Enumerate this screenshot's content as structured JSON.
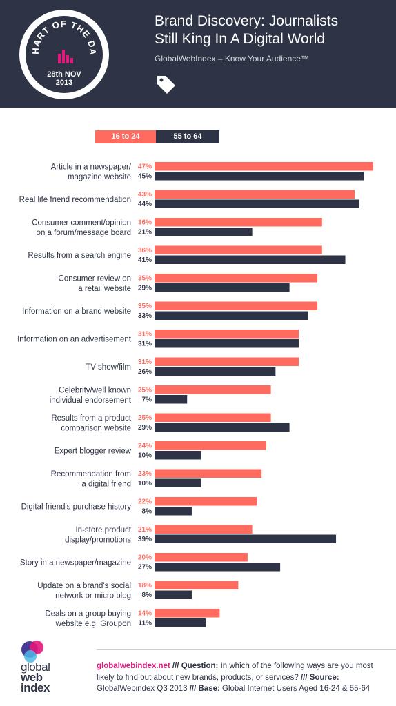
{
  "header": {
    "badge_line1": "28th NOV",
    "badge_line2": "2013",
    "badge_arc_text": "CHART OF THE DAY",
    "title_line1": "Brand Discovery: Journalists",
    "title_line2": "Still King In A Digital World",
    "subtitle": "GlobalWebIndex – Know Your Audience™",
    "tag_icon": "tag-icon"
  },
  "colors": {
    "header_bg": "#2e3445",
    "series_16_24": "#ff6b5e",
    "series_55_64": "#2e3445",
    "accent_pink": "#e4177c"
  },
  "chart_data": {
    "type": "bar",
    "orientation": "horizontal",
    "categories": [
      [
        "Article in a newspaper/",
        "magazine website"
      ],
      [
        "Real life friend recommendation"
      ],
      [
        "Consumer comment/opinion",
        "on a forum/message board"
      ],
      [
        "Results from a search engine"
      ],
      [
        "Consumer review on",
        "a retail website"
      ],
      [
        "Information on a brand website"
      ],
      [
        "Information on an advertisement"
      ],
      [
        "TV show/film"
      ],
      [
        "Celebrity/well known",
        "individual endorsement"
      ],
      [
        "Results from a product",
        "comparison website"
      ],
      [
        "Expert blogger review"
      ],
      [
        "Recommendation from",
        "a digital friend"
      ],
      [
        "Digital friend's purchase history"
      ],
      [
        "In-store product",
        "display/promotions"
      ],
      [
        "Story in a newspaper/magazine"
      ],
      [
        "Update on a brand's social",
        "network or micro blog"
      ],
      [
        "Deals on a group buying",
        "website e.g. Groupon"
      ]
    ],
    "series": [
      {
        "name": "16 to 24",
        "values": [
          47,
          43,
          36,
          36,
          35,
          35,
          31,
          31,
          25,
          25,
          24,
          23,
          22,
          21,
          20,
          18,
          14
        ]
      },
      {
        "name": "55 to 64",
        "values": [
          45,
          44,
          21,
          41,
          29,
          33,
          31,
          26,
          7,
          29,
          10,
          10,
          8,
          39,
          27,
          8,
          11
        ]
      }
    ],
    "value_suffix": "%",
    "legend_position": "top-left",
    "grid": false,
    "xlim": [
      0,
      47
    ]
  },
  "footer": {
    "site": "globalwebindex.net",
    "sep": "///",
    "question_label": "Question:",
    "question": "In which of the following ways are you most likely to find out about new brands, products, or services?",
    "source_label": "Source:",
    "source": "GlobalWebindex Q3 2013",
    "base_label": "Base:",
    "base": "Global Internet Users Aged 16-24 & 55-64",
    "logo_line1": "global",
    "logo_line2": "web",
    "logo_line3": "index"
  }
}
